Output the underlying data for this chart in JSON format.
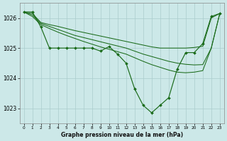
{
  "title": "Graphe pression niveau de la mer (hPa)",
  "bg_color": "#cce8e8",
  "grid_color": "#aacccc",
  "line_color": "#1a6b1a",
  "x_ticks": [
    0,
    1,
    2,
    3,
    4,
    5,
    6,
    7,
    8,
    9,
    10,
    11,
    12,
    13,
    14,
    15,
    16,
    17,
    18,
    19,
    20,
    21,
    22,
    23
  ],
  "ylim": [
    1022.5,
    1026.5
  ],
  "yticks": [
    1023,
    1024,
    1025,
    1026
  ],
  "main_y": [
    1026.2,
    1026.2,
    1025.7,
    1025.0,
    1025.0,
    1025.0,
    1025.0,
    1025.0,
    1025.0,
    1024.9,
    1025.05,
    1024.8,
    1024.5,
    1023.65,
    1023.1,
    1022.85,
    1023.1,
    1023.35,
    1024.3,
    1024.85,
    1024.85,
    1025.15,
    1026.05,
    1026.15
  ],
  "ref1_y": [
    1026.2,
    1026.15,
    1025.85,
    1025.78,
    1025.72,
    1025.65,
    1025.58,
    1025.52,
    1025.46,
    1025.4,
    1025.34,
    1025.28,
    1025.22,
    1025.16,
    1025.1,
    1025.04,
    1025.0,
    1025.0,
    1025.0,
    1025.0,
    1025.02,
    1025.06,
    1026.0,
    1026.15
  ],
  "ref2_y": [
    1026.2,
    1026.1,
    1025.82,
    1025.72,
    1025.62,
    1025.52,
    1025.42,
    1025.35,
    1025.28,
    1025.21,
    1025.14,
    1025.07,
    1025.0,
    1024.9,
    1024.8,
    1024.72,
    1024.64,
    1024.56,
    1024.5,
    1024.46,
    1024.44,
    1024.45,
    1025.0,
    1026.15
  ],
  "ref3_y": [
    1026.2,
    1026.05,
    1025.78,
    1025.65,
    1025.53,
    1025.42,
    1025.32,
    1025.22,
    1025.13,
    1025.04,
    1024.96,
    1024.88,
    1024.8,
    1024.68,
    1024.56,
    1024.45,
    1024.36,
    1024.27,
    1024.2,
    1024.18,
    1024.2,
    1024.25,
    1025.0,
    1026.15
  ]
}
